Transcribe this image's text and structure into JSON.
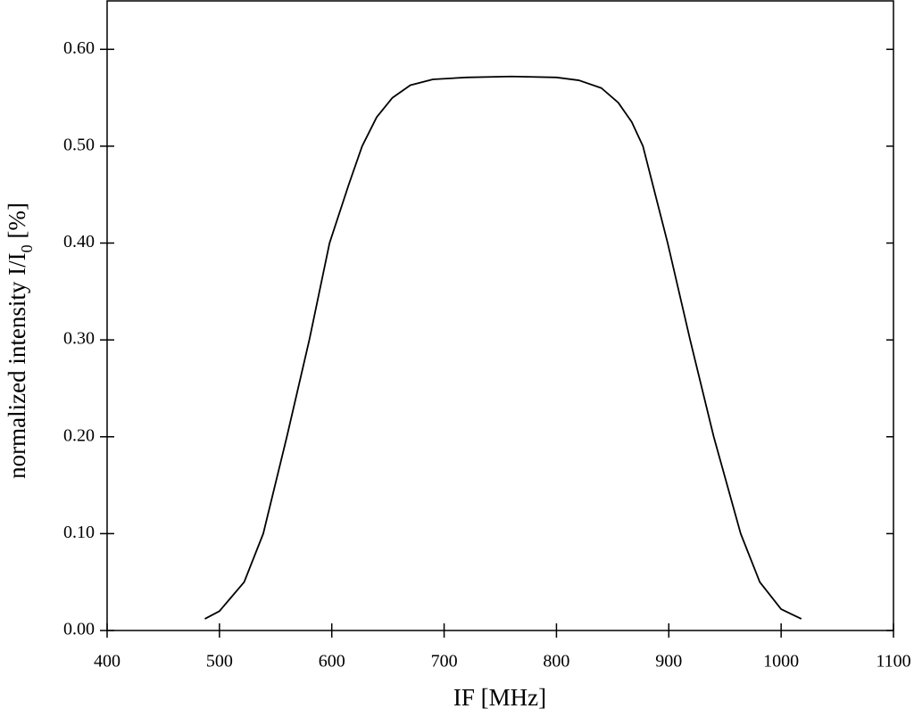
{
  "chart_data": {
    "type": "line",
    "xlabel": "IF [MHz]",
    "ylabel": {
      "text": "normalized intensity I/I",
      "sub": "0",
      "suffix": " [%]"
    },
    "x": [
      487,
      500,
      522,
      539,
      560,
      580,
      598,
      615,
      627,
      640,
      654,
      670,
      690,
      720,
      760,
      800,
      820,
      840,
      855,
      867,
      877,
      888,
      899,
      919,
      940,
      964,
      981,
      1000,
      1018
    ],
    "series": [
      {
        "color": "#000000",
        "values": [
          0.012,
          0.02,
          0.05,
          0.1,
          0.2,
          0.3,
          0.4,
          0.46,
          0.5,
          0.53,
          0.55,
          0.563,
          0.569,
          0.571,
          0.572,
          0.571,
          0.568,
          0.56,
          0.545,
          0.525,
          0.5,
          0.45,
          0.4,
          0.3,
          0.2,
          0.1,
          0.05,
          0.022,
          0.012
        ]
      }
    ],
    "xlim": [
      400,
      1100
    ],
    "ylim": [
      0,
      0.65
    ],
    "xticks": [
      400,
      500,
      600,
      700,
      800,
      900,
      1000,
      1100
    ],
    "yticks": [
      {
        "value": 0,
        "label": "0.00"
      },
      {
        "value": 0.1,
        "label": "0.10"
      },
      {
        "value": 0.2,
        "label": "0.20"
      },
      {
        "value": 0.3,
        "label": "0.30"
      },
      {
        "value": 0.4,
        "label": "0.40"
      },
      {
        "value": 0.5,
        "label": "0.50"
      },
      {
        "value": 0.6,
        "label": "0.60"
      }
    ],
    "grid": false
  }
}
